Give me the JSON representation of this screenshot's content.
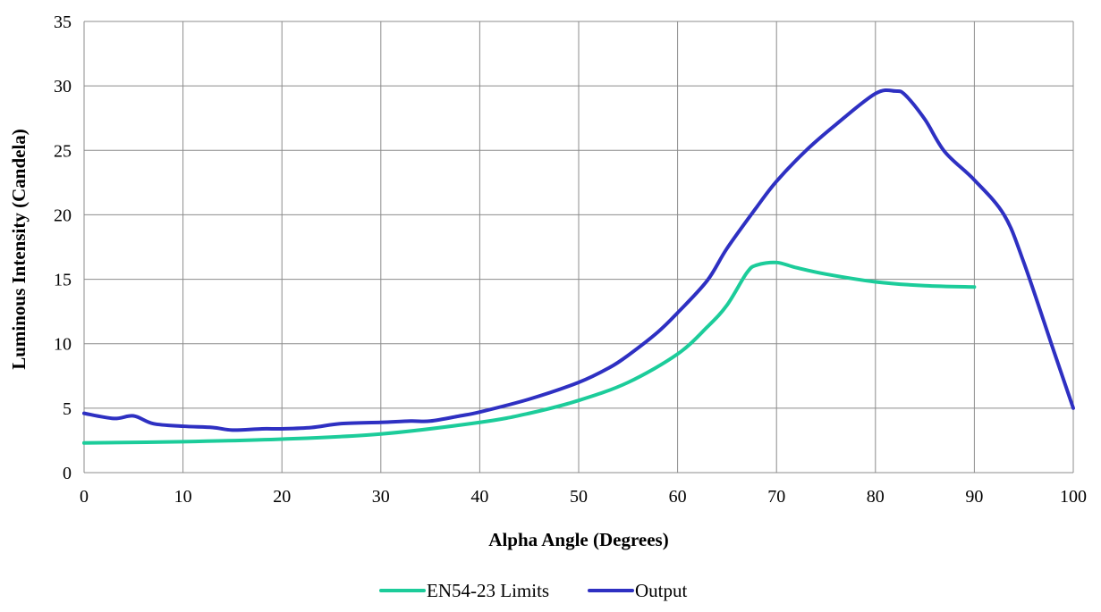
{
  "chart_data": {
    "type": "line",
    "xlabel": "Alpha Angle (Degrees)",
    "ylabel": "Luminous Intensity (Candela)",
    "xlim": [
      0,
      100
    ],
    "ylim": [
      0,
      35
    ],
    "x_ticks": [
      0,
      10,
      20,
      30,
      40,
      50,
      60,
      70,
      80,
      90,
      100
    ],
    "y_ticks": [
      0,
      5,
      10,
      15,
      20,
      25,
      30,
      35
    ],
    "grid": true,
    "legend_position": "bottom",
    "series": [
      {
        "name": "EN54-23 Limits",
        "color": "#1ccc9a",
        "points": [
          [
            0,
            2.3
          ],
          [
            10,
            2.4
          ],
          [
            20,
            2.6
          ],
          [
            30,
            3.0
          ],
          [
            40,
            3.9
          ],
          [
            45,
            4.6
          ],
          [
            50,
            5.6
          ],
          [
            55,
            7.0
          ],
          [
            60,
            9.2
          ],
          [
            63,
            11.3
          ],
          [
            65,
            13.0
          ],
          [
            67,
            15.5
          ],
          [
            68,
            16.1
          ],
          [
            70,
            16.3
          ],
          [
            72,
            15.9
          ],
          [
            75,
            15.4
          ],
          [
            80,
            14.8
          ],
          [
            85,
            14.5
          ],
          [
            90,
            14.4
          ]
        ]
      },
      {
        "name": "Output",
        "color": "#2e30c2",
        "points": [
          [
            0,
            4.6
          ],
          [
            3,
            4.2
          ],
          [
            5,
            4.4
          ],
          [
            7,
            3.8
          ],
          [
            10,
            3.6
          ],
          [
            13,
            3.5
          ],
          [
            15,
            3.3
          ],
          [
            18,
            3.4
          ],
          [
            20,
            3.4
          ],
          [
            23,
            3.5
          ],
          [
            26,
            3.8
          ],
          [
            30,
            3.9
          ],
          [
            33,
            4.0
          ],
          [
            35,
            4.0
          ],
          [
            38,
            4.4
          ],
          [
            40,
            4.7
          ],
          [
            45,
            5.7
          ],
          [
            50,
            7.0
          ],
          [
            53,
            8.1
          ],
          [
            55,
            9.1
          ],
          [
            58,
            10.9
          ],
          [
            60,
            12.4
          ],
          [
            63,
            14.9
          ],
          [
            65,
            17.4
          ],
          [
            68,
            20.6
          ],
          [
            70,
            22.6
          ],
          [
            73,
            25.0
          ],
          [
            76,
            27.0
          ],
          [
            80,
            29.4
          ],
          [
            82,
            29.6
          ],
          [
            83,
            29.3
          ],
          [
            85,
            27.4
          ],
          [
            87,
            24.9
          ],
          [
            90,
            22.7
          ],
          [
            93,
            20.0
          ],
          [
            95,
            16.3
          ],
          [
            98,
            9.5
          ],
          [
            100,
            5.0
          ]
        ]
      }
    ]
  }
}
